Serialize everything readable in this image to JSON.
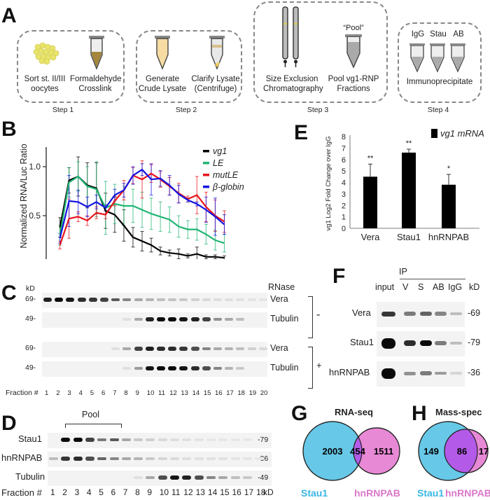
{
  "panels": {
    "A": {
      "label": "A",
      "steps": [
        {
          "name": "Step 1",
          "items": [
            {
              "icon": "oocytes-cluster-icon",
              "text": [
                "Sort st. II/III",
                "oocytes"
              ]
            },
            {
              "icon": "tube-crosslink-icon",
              "text": [
                "Formaldehyde",
                "Crosslink"
              ]
            }
          ]
        },
        {
          "name": "Step 2",
          "items": [
            {
              "icon": "tube-lysate-icon",
              "text": [
                "Generate",
                "Crude Lysate"
              ]
            },
            {
              "icon": "tube-centrifuge-icon",
              "text": [
                "Clarify Lysate",
                "(Centrifuge)"
              ]
            }
          ]
        },
        {
          "name": "Step 3",
          "items": [
            {
              "icon": "sec-columns-icon",
              "text": [
                "Size Exclusion",
                "Chromatography"
              ]
            },
            {
              "icon": "tube-pool-icon",
              "caption": "“Pool”",
              "text": [
                "Pool vg1-RNP",
                "Fractions"
              ]
            }
          ]
        },
        {
          "name": "Step 4",
          "tubes": [
            "IgG",
            "Stau",
            "AB"
          ],
          "text": [
            "Immunoprecipitate"
          ]
        }
      ]
    },
    "B": {
      "label": "B"
    },
    "C": {
      "label": "C",
      "kd_header": "kD",
      "rows": [
        {
          "kd": "69-",
          "protein": "Vera",
          "rnase": "-"
        },
        {
          "kd": "49-",
          "protein": "Tubulin",
          "rnase": "-"
        },
        {
          "kd": "69-",
          "protein": "Vera",
          "rnase": "+"
        },
        {
          "kd": "49-",
          "protein": "Tubulin",
          "rnase": "+"
        }
      ],
      "rnase_header": "RNase",
      "rnase_minus": "-",
      "rnase_plus": "+",
      "fraction_label": "Fraction #",
      "fractions": [
        "1",
        "2",
        "3",
        "4",
        "5",
        "6",
        "7",
        "8",
        "9",
        "10",
        "11",
        "12",
        "13",
        "14",
        "15",
        "16",
        "17",
        "18",
        "19",
        "20"
      ],
      "intensities": [
        [
          0.9,
          1,
          0.95,
          0.85,
          0.8,
          0.75,
          0.65,
          0.45,
          0.3,
          0.25,
          0.2,
          0.18,
          0.15,
          0.12,
          0.08,
          0.06,
          0.05,
          0.04,
          0.03,
          0.03
        ],
        [
          0,
          0,
          0,
          0,
          0,
          0,
          0,
          0.05,
          0.3,
          0.9,
          1,
          1,
          0.95,
          0.9,
          0.75,
          0.4,
          0.3,
          0.2,
          0,
          0
        ],
        [
          0,
          0,
          0,
          0,
          0,
          0,
          0.05,
          0.3,
          0.75,
          0.9,
          0.85,
          0.85,
          0.8,
          0.7,
          0.45,
          0.3,
          0.25,
          0.2,
          0.12,
          0.08
        ],
        [
          0,
          0,
          0,
          0,
          0,
          0,
          0,
          0.05,
          0.35,
          0.95,
          1,
          1,
          0.95,
          0.85,
          0.7,
          0.45,
          0.25,
          0.15,
          0,
          0
        ]
      ]
    },
    "D": {
      "label": "D",
      "pool_label": "Pool",
      "rows": [
        {
          "protein": "Stau1",
          "kd": "-79"
        },
        {
          "protein": "hnRNPAB",
          "kd": "-36"
        },
        {
          "protein": "Tubulin",
          "kd": "-49"
        }
      ],
      "fraction_label": "Fraction #",
      "fractions": [
        "1",
        "2",
        "3",
        "4",
        "5",
        "6",
        "7",
        "8",
        "9",
        "10",
        "11",
        "12",
        "13",
        "14",
        "15",
        "16",
        "17",
        "18"
      ],
      "kd_footer": "kD",
      "intensities": [
        [
          0,
          1,
          1,
          0.75,
          0.5,
          0.65,
          0.3,
          0.15,
          0.12,
          0.08,
          0.06,
          0.05,
          0.03,
          0.02,
          0.02,
          0.02,
          0.02,
          0
        ],
        [
          0.2,
          0.8,
          0.85,
          0.7,
          0.6,
          0.45,
          0.3,
          0.25,
          0.15,
          0.1,
          0.08,
          0.06,
          0.05,
          0.04,
          0.04,
          0.03,
          0.03,
          0.02
        ],
        [
          0,
          0,
          0,
          0,
          0,
          0,
          0,
          0.05,
          0.3,
          0.7,
          0.95,
          0.9,
          0.7,
          0.45,
          0.3,
          0.2,
          0.15,
          0
        ]
      ]
    },
    "E": {
      "label": "E"
    },
    "F": {
      "label": "F",
      "ip_label": "IP",
      "columns": [
        "input",
        "V",
        "S",
        "AB",
        "IgG",
        "kD"
      ],
      "rows": [
        {
          "protein": "Vera",
          "kd": "-69",
          "intensities": [
            0.8,
            0.5,
            0.6,
            0.45,
            0.2
          ]
        },
        {
          "protein": "Stau1",
          "kd": "-79",
          "intensities": [
            1,
            0.85,
            1,
            0.5,
            0.2
          ]
        },
        {
          "protein": "hnRNPAB",
          "kd": "-36",
          "intensities": [
            1,
            0.4,
            0.5,
            0.35,
            0.1
          ]
        }
      ]
    },
    "G": {
      "label": "G",
      "title": "RNA-seq",
      "left_name": "Stau1",
      "right_name": "hnRNPAB",
      "left_only": "2003",
      "overlap": "454",
      "right_only": "1511"
    },
    "H": {
      "label": "H",
      "title": "Mass-spec",
      "left_name": "Stau1",
      "right_name": "hnRNPAB",
      "left_only": "149",
      "overlap": "86",
      "right_only": "17"
    }
  },
  "colors": {
    "stau1": "#67c8e8",
    "hnrnpab": "#e889d6",
    "overlap": "#b45ae8",
    "vg1": "#000000",
    "LE": "#22b573",
    "mutLE": "#e8141c",
    "bglobin": "#1414e0"
  },
  "chart_data": [
    {
      "id": "B",
      "type": "line",
      "title": "",
      "xlabel": "Fraction #",
      "ylabel": "Normalized RNA/Luc Ratio",
      "xlim": [
        0.5,
        20.5
      ],
      "ylim": [
        0,
        1.2
      ],
      "xticks": [
        5,
        10,
        15,
        20
      ],
      "yticks": [
        "0.0",
        "0.5",
        "1.0"
      ],
      "yticks_values": [
        0,
        0.5,
        1.0
      ],
      "legend_position": "top-right",
      "x": [
        2,
        3,
        4,
        5,
        6,
        7,
        8,
        9,
        10,
        11,
        12,
        13,
        14,
        15,
        16,
        17,
        18,
        19,
        20
      ],
      "series": [
        {
          "name": "vg1",
          "color": "#000000",
          "values": [
            0.38,
            0.86,
            0.9,
            0.81,
            0.78,
            0.55,
            0.51,
            0.4,
            0.28,
            0.24,
            0.2,
            0.14,
            0.12,
            0.11,
            0.09,
            0.11,
            0.08,
            0.08,
            0.07
          ],
          "errors": [
            0.1,
            0.13,
            0.2,
            0.23,
            0.26,
            0.18,
            0.18,
            0.16,
            0.1,
            0.1,
            0.07,
            0.04,
            0.03,
            0.05,
            0.02,
            0.07,
            0.02,
            0.02,
            0.02
          ]
        },
        {
          "name": "LE",
          "color": "#22b573",
          "values": [
            0.3,
            0.84,
            0.9,
            0.8,
            0.77,
            0.58,
            0.62,
            0.6,
            0.6,
            0.56,
            0.52,
            0.49,
            0.46,
            0.39,
            0.36,
            0.36,
            0.31,
            0.25,
            0.22
          ],
          "errors": [
            0.1,
            0.15,
            0.15,
            0.2,
            0.28,
            0.27,
            0.2,
            0.2,
            0.17,
            0.18,
            0.16,
            0.15,
            0.13,
            0.11,
            0.09,
            0.11,
            0.1,
            0.1,
            0.09
          ]
        },
        {
          "name": "mutLE",
          "color": "#e8141c",
          "values": [
            0.2,
            0.47,
            0.49,
            0.45,
            0.53,
            0.51,
            0.65,
            0.76,
            0.91,
            0.87,
            0.93,
            0.87,
            0.8,
            0.73,
            0.67,
            0.71,
            0.59,
            0.5,
            0.44
          ],
          "errors": [
            0.04,
            0.2,
            0.05,
            0.05,
            0.06,
            0.04,
            0.05,
            0.1,
            0.08,
            0.19,
            0.09,
            0.08,
            0.09,
            0.1,
            0.03,
            0.19,
            0.15,
            0.16,
            0.11
          ]
        },
        {
          "name": "β-globin",
          "color": "#1414e0",
          "values": [
            0.27,
            0.65,
            0.64,
            0.59,
            0.64,
            0.58,
            0.71,
            0.76,
            0.91,
            0.97,
            0.87,
            0.88,
            0.81,
            0.72,
            0.66,
            0.62,
            0.56,
            0.49,
            0.41
          ],
          "errors": [
            0.05,
            0.26,
            0.12,
            0.1,
            0.07,
            0.03,
            0.06,
            0.07,
            0.09,
            0.06,
            0.16,
            0.08,
            0.1,
            0.09,
            0.02,
            0.02,
            0.13,
            0.19,
            0.1
          ]
        }
      ]
    },
    {
      "id": "E",
      "type": "bar",
      "title": "",
      "xlabel": "",
      "ylabel": "vg1 Log2 Fold Change over IgG",
      "ylim": [
        0,
        8
      ],
      "yticks": [
        "0",
        "1",
        "2",
        "3",
        "4",
        "5",
        "6",
        "7",
        "8"
      ],
      "legend": [
        "vg1 mRNA"
      ],
      "legend_position": "top-right",
      "categories": [
        "Vera",
        "Stau1",
        "hnRNPAB"
      ],
      "values": [
        4.5,
        6.6,
        3.8
      ],
      "errors": [
        1.1,
        0.3,
        0.9
      ],
      "annotations": [
        "**",
        "**",
        "*"
      ]
    }
  ]
}
